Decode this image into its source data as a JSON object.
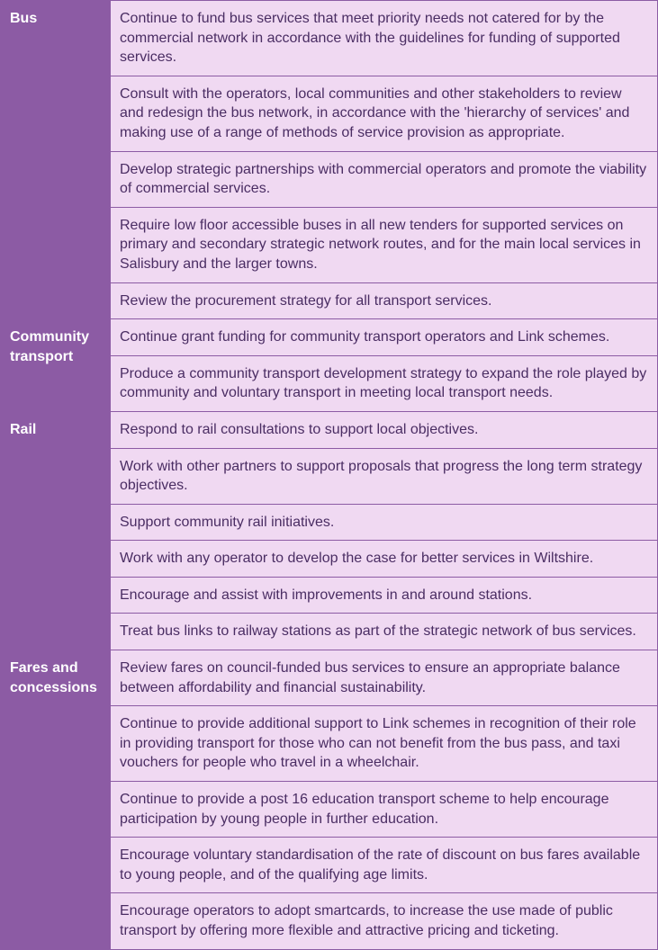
{
  "colors": {
    "border": "#8c5ba4",
    "catBg": "#8c5ba4",
    "catFg": "#ffffff",
    "detBg": "#f0d9f2",
    "detFg": "#4a2d63"
  },
  "fontSizePt": 12,
  "rows": [
    {
      "category": "Bus",
      "categoryRowspan": 3,
      "detail": "Continue to fund bus services that meet priority needs not catered for by the commercial network in accordance with the guidelines for funding of supported services."
    },
    {
      "detail": "Consult with the operators, local communities and other stakeholders to review and redesign the bus network, in accordance with the 'hierarchy of services' and making use of a range of methods of service provision as appropriate."
    },
    {
      "detail": "Develop strategic partnerships with commercial operators and promote the viability of commercial services."
    },
    {
      "category": "",
      "categoryRowspan": 1,
      "detail": "Require low floor accessible buses in all new tenders for supported services on primary and secondary strategic network routes, and for the main local services in Salisbury and the larger towns."
    },
    {
      "category": "",
      "categoryRowspan": 1,
      "detail": "Review the procurement strategy for all transport services."
    },
    {
      "category": "Community transport",
      "categoryRowspan": 2,
      "detail": "Continue grant funding for community transport operators and Link schemes."
    },
    {
      "detail": "Produce a community transport development strategy to expand the role played by community and voluntary transport in meeting local transport needs."
    },
    {
      "category": "Rail",
      "categoryRowspan": 6,
      "detail": "Respond to rail consultations to support local objectives."
    },
    {
      "detail": "Work with other partners to support proposals that progress the long term strategy objectives."
    },
    {
      "detail": "Support community rail initiatives."
    },
    {
      "detail": "Work with any operator to develop the case for better services in Wiltshire."
    },
    {
      "detail": "Encourage and assist with improvements in and around stations."
    },
    {
      "detail": "Treat bus links to railway stations as part of the strategic network of bus services."
    },
    {
      "category": "Fares and concessions",
      "categoryRowspan": 1,
      "detail": "Review fares on council-funded bus services to ensure an appropriate balance between affordability and financial sustainability."
    },
    {
      "category": "",
      "categoryRowspan": 4,
      "detail": "Continue to provide additional support to Link schemes in recognition of their role in providing transport for those who can not benefit from the bus pass, and taxi vouchers for people who travel in a wheelchair."
    },
    {
      "detail": "Continue to provide a post 16 education transport scheme to help encourage participation by young people in further education."
    },
    {
      "detail": "Encourage voluntary standardisation of the rate of discount on bus fares available to young people, and of the qualifying age limits."
    },
    {
      "detail": "Encourage operators to adopt smartcards, to increase the use made of public transport by offering more flexible and attractive pricing and ticketing."
    }
  ]
}
